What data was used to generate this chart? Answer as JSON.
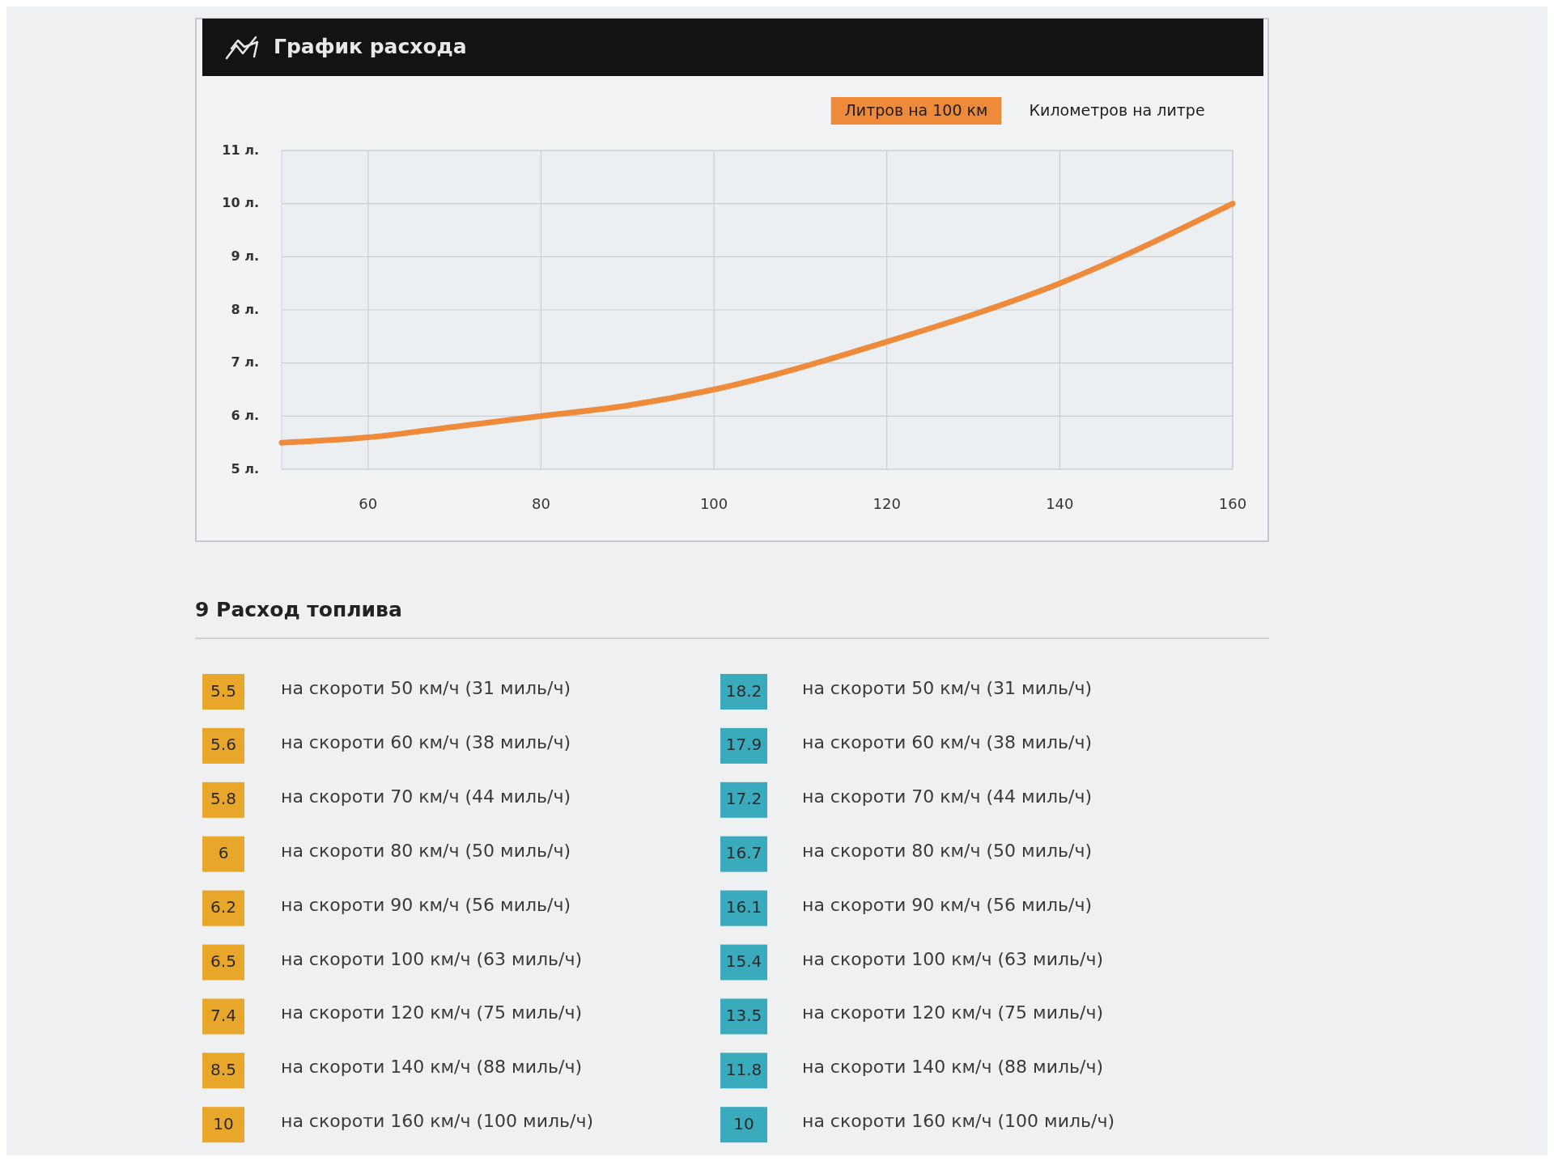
{
  "chart_data": [
    {
      "type": "line",
      "title": "График расхода",
      "x": [
        50,
        60,
        70,
        80,
        90,
        100,
        120,
        140,
        160
      ],
      "xlim": [
        50,
        160
      ],
      "xticks": [
        60,
        80,
        100,
        120,
        140,
        160
      ],
      "ylim": [
        5,
        11
      ],
      "yticks": [
        {
          "value": 5,
          "label": "5 л."
        },
        {
          "value": 6,
          "label": "6 л."
        },
        {
          "value": 7,
          "label": "7 л."
        },
        {
          "value": 8,
          "label": "8 л."
        },
        {
          "value": 9,
          "label": "9 л."
        },
        {
          "value": 10,
          "label": "10 л."
        },
        {
          "value": 11,
          "label": "11 л."
        }
      ],
      "grid": true,
      "legend": "top right",
      "series": [
        {
          "name": "Литров на 100 км",
          "color": "#ee8a3a",
          "values": [
            5.5,
            5.6,
            5.8,
            6,
            6.2,
            6.5,
            7.4,
            8.5,
            10
          ]
        },
        {
          "name": "Километров на литре",
          "values": [
            null,
            null,
            null,
            null,
            null,
            null,
            null,
            null,
            null
          ]
        }
      ]
    },
    {
      "type": "other",
      "title": "9 Расход топлива",
      "categories": [
        "на скороти 50 км/ч (31 миль/ч)",
        "на скороти 60 км/ч (38 миль/ч)",
        "на скороти 70 км/ч (44 миль/ч)",
        "на скороти 80 км/ч (50 миль/ч)",
        "на скороти 90 км/ч (56 миль/ч)",
        "на скороти 100 км/ч (63 миль/ч)",
        "на скороти 120 км/ч (75 миль/ч)",
        "на скороти 140 км/ч (88 миль/ч)",
        "на скороти 160 км/ч (100 миль/ч)"
      ],
      "data_labels": true,
      "series": [
        {
          "color": "#e8a62a",
          "values": [
            5.5,
            5.6,
            5.8,
            6,
            6.2,
            6.5,
            7.4,
            8.5,
            10
          ]
        },
        {
          "color": "#3aabbd",
          "values": [
            18.2,
            17.9,
            17.2,
            16.7,
            16.1,
            15.4,
            13.5,
            11.8,
            10
          ]
        }
      ]
    }
  ]
}
